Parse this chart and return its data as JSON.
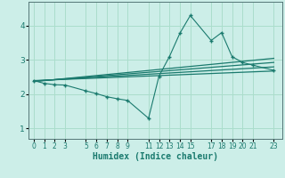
{
  "title": "",
  "xlabel": "Humidex (Indice chaleur)",
  "bg_color": "#cceee8",
  "grid_color": "#aaddcc",
  "line_color": "#1a7a6e",
  "x_ticks": [
    0,
    1,
    2,
    3,
    5,
    6,
    7,
    8,
    9,
    11,
    12,
    13,
    14,
    15,
    17,
    18,
    19,
    20,
    21,
    23
  ],
  "yticks": [
    1,
    2,
    3,
    4
  ],
  "ylim": [
    0.7,
    4.7
  ],
  "xlim": [
    -0.5,
    23.8
  ],
  "series": {
    "jagged": {
      "x": [
        0,
        1,
        2,
        3,
        5,
        6,
        7,
        8,
        9,
        11,
        12,
        13,
        14,
        15,
        17,
        18,
        19,
        20,
        21,
        23
      ],
      "y": [
        2.4,
        2.32,
        2.28,
        2.27,
        2.1,
        2.02,
        1.93,
        1.87,
        1.82,
        1.3,
        2.53,
        3.1,
        3.78,
        4.3,
        3.57,
        3.8,
        3.1,
        2.93,
        2.85,
        2.7
      ]
    },
    "line1": {
      "x": [
        0,
        23
      ],
      "y": [
        2.4,
        2.68
      ]
    },
    "line2": {
      "x": [
        0,
        23
      ],
      "y": [
        2.39,
        2.8
      ]
    },
    "line3": {
      "x": [
        0,
        23
      ],
      "y": [
        2.38,
        2.93
      ]
    },
    "line4": {
      "x": [
        0,
        23
      ],
      "y": [
        2.37,
        3.05
      ]
    }
  }
}
